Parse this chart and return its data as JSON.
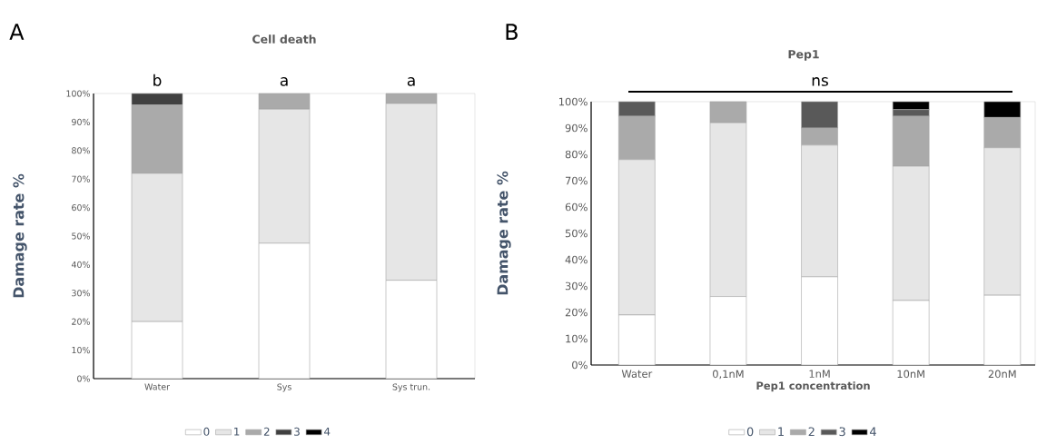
{
  "chart_data": [
    {
      "type": "bar",
      "stacked": true,
      "title": "Cell death",
      "ylabel": "Damage rate %",
      "categories": [
        "Water",
        "Sys",
        "Sys trun."
      ],
      "series": [
        {
          "name": "0",
          "color": "#ffffff",
          "values": [
            20,
            47.5,
            34.5
          ]
        },
        {
          "name": "1",
          "color": "#e6e6e6",
          "values": [
            52,
            47,
            62
          ]
        },
        {
          "name": "2",
          "color": "#aaaaaa",
          "values": [
            24,
            5.5,
            3.5
          ]
        },
        {
          "name": "3",
          "color": "#404040",
          "values": [
            4,
            0,
            0
          ]
        },
        {
          "name": "4",
          "color": "#000000",
          "values": [
            0,
            0,
            0
          ]
        }
      ],
      "ylim": [
        0,
        100
      ],
      "yticks": [
        {
          "value": 0,
          "label": "0%"
        },
        {
          "value": 10,
          "label": "10%"
        },
        {
          "value": 20,
          "label": "20%"
        },
        {
          "value": 30,
          "label": "30%"
        },
        {
          "value": 40,
          "label": "40%"
        },
        {
          "value": 50,
          "label": "50%"
        },
        {
          "value": 60,
          "label": "60%"
        },
        {
          "value": 70,
          "label": "70%"
        },
        {
          "value": 80,
          "label": "80%"
        },
        {
          "value": 90,
          "label": "90%"
        },
        {
          "value": 100,
          "label": "100%"
        }
      ],
      "legend": "bottom",
      "annotations": [
        "A",
        "b",
        "a",
        "a"
      ]
    },
    {
      "type": "bar",
      "stacked": true,
      "title": "Pep1",
      "xlabel": "Pep1 concentration",
      "ylabel": "Damage rate %",
      "categories": [
        "Water",
        "0,1nM",
        "1nM",
        "10nM",
        "20nM"
      ],
      "series": [
        {
          "name": "0",
          "color": "#ffffff",
          "values": [
            19,
            26,
            33.5,
            24.5,
            26.5
          ]
        },
        {
          "name": "1",
          "color": "#e6e6e6",
          "values": [
            59,
            66,
            50,
            51,
            56
          ]
        },
        {
          "name": "2",
          "color": "#aaaaaa",
          "values": [
            16.5,
            8,
            6.5,
            19,
            11.5
          ]
        },
        {
          "name": "3",
          "color": "#595959",
          "values": [
            5.5,
            0,
            10,
            2.5,
            0
          ]
        },
        {
          "name": "4",
          "color": "#000000",
          "values": [
            0,
            0,
            0,
            3,
            6
          ]
        }
      ],
      "ylim": [
        0,
        100
      ],
      "yticks": [
        {
          "value": 0,
          "label": "0%"
        },
        {
          "value": 10,
          "label": "10%"
        },
        {
          "value": 20,
          "label": "20%"
        },
        {
          "value": 30,
          "label": "30%"
        },
        {
          "value": 40,
          "label": "40%"
        },
        {
          "value": 50,
          "label": "50%"
        },
        {
          "value": 60,
          "label": "60%"
        },
        {
          "value": 70,
          "label": "70%"
        },
        {
          "value": 80,
          "label": "80%"
        },
        {
          "value": 90,
          "label": "90%"
        },
        {
          "value": 100,
          "label": "100%"
        }
      ],
      "legend": "bottom",
      "annotations": [
        "B",
        "ns"
      ]
    }
  ]
}
